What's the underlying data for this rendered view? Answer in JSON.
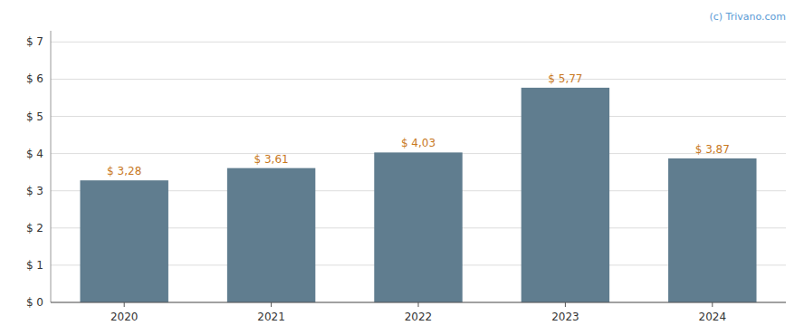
{
  "chart_data": {
    "type": "bar",
    "categories": [
      "2020",
      "2021",
      "2022",
      "2023",
      "2024"
    ],
    "values": [
      3.28,
      3.61,
      4.03,
      5.77,
      3.87
    ],
    "value_labels": [
      "$ 3,28",
      "$ 3,61",
      "$ 4,03",
      "$ 5,77",
      "$ 3,87"
    ],
    "data_labels": true,
    "color": "#607d8f",
    "ylim": [
      0,
      7.3
    ],
    "yticks": [
      {
        "value": 0,
        "label": "$ 0"
      },
      {
        "value": 1,
        "label": "$ 1"
      },
      {
        "value": 2,
        "label": "$ 2"
      },
      {
        "value": 3,
        "label": "$ 3"
      },
      {
        "value": 4,
        "label": "$ 4"
      },
      {
        "value": 5,
        "label": "$ 5"
      },
      {
        "value": 6,
        "label": "$ 6"
      },
      {
        "value": 7,
        "label": "$ 7"
      }
    ],
    "grid": true,
    "annotations": [
      "(c) Trivano.com"
    ]
  }
}
